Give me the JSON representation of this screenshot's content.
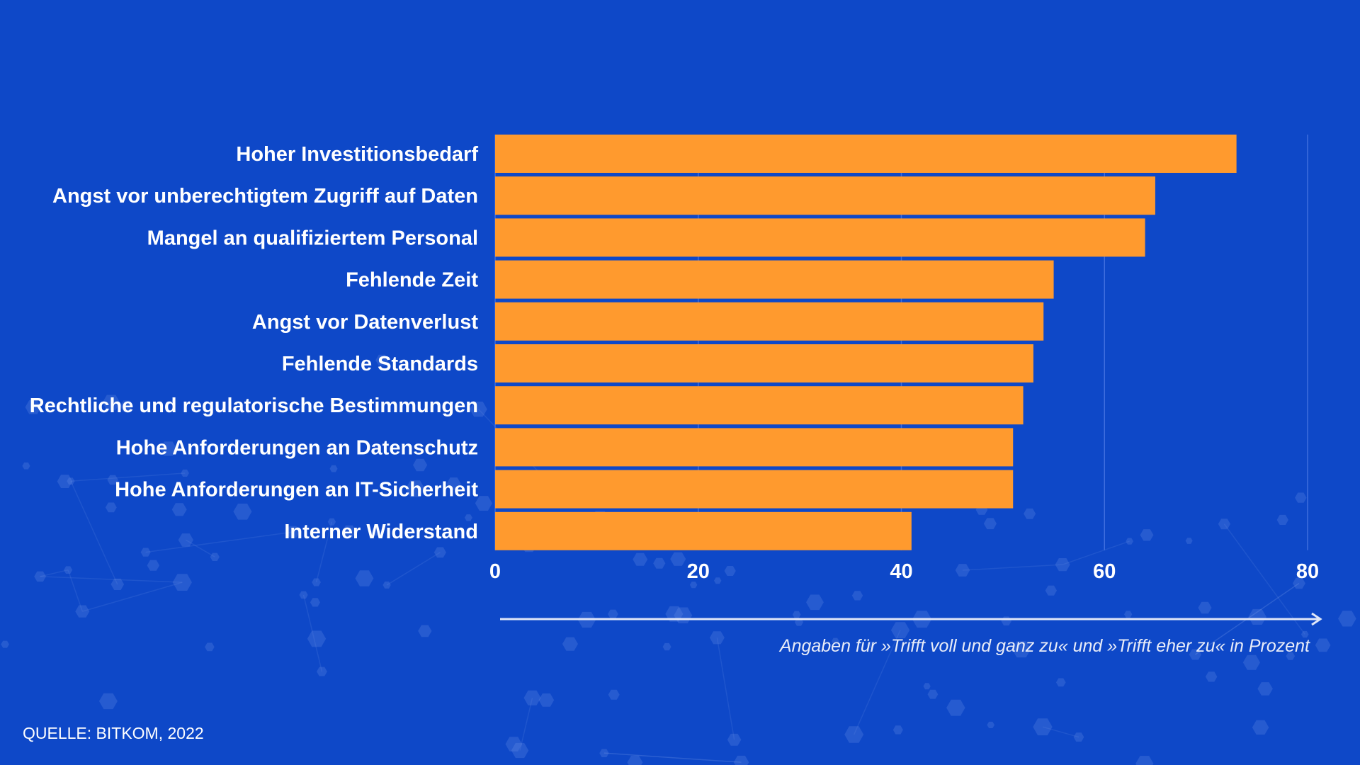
{
  "chart_data": {
    "type": "bar",
    "orientation": "horizontal",
    "categories": [
      "Hoher Investitionsbedarf",
      "Angst vor unberechtigtem Zugriff auf Daten",
      "Mangel an qualifiziertem Personal",
      "Fehlende Zeit",
      "Angst vor Datenverlust",
      "Fehlende Standards",
      "Rechtliche und regulatorische Bestimmungen",
      "Hohe Anforderungen an Datenschutz",
      "Hohe Anforderungen an IT-Sicherheit",
      "Interner Widerstand"
    ],
    "values": [
      73,
      65,
      64,
      55,
      54,
      53,
      52,
      51,
      51,
      41
    ],
    "xlim": [
      0,
      80
    ],
    "xticks": [
      "0",
      "20",
      "40",
      "60",
      "80"
    ],
    "xlabel": "Angaben für »Trifft voll und ganz zu« und »Trifft eher zu« in Prozent",
    "title": "",
    "grid": true,
    "colors": {
      "bar": "#ff9a2e",
      "background": "#0e48c8",
      "gridline": "#3f6ede",
      "text": "#ffffff"
    }
  },
  "source": "QUELLE: BITKOM, 2022"
}
